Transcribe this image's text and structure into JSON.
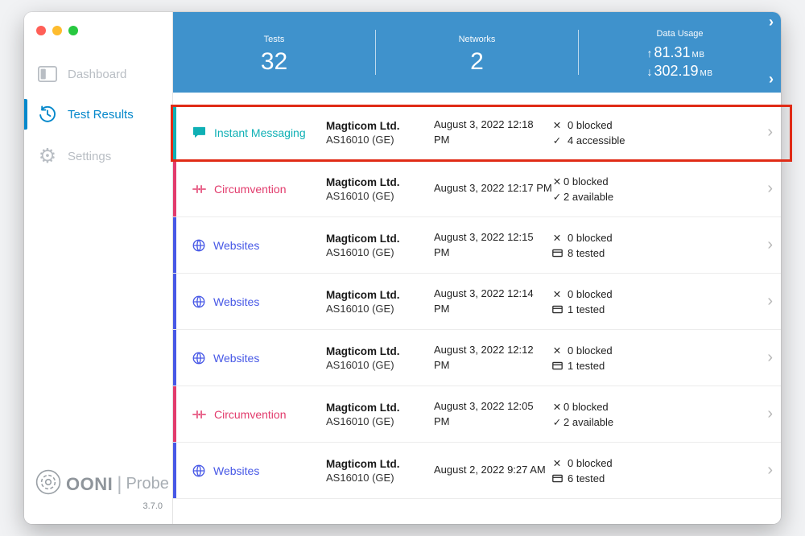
{
  "window": {
    "traffic_lights": {
      "close": "#ff5f57",
      "minimize": "#febc2e",
      "zoom": "#28c840"
    }
  },
  "sidebar": {
    "accent": "#0588cb",
    "items": [
      {
        "label": "Dashboard",
        "icon": "dashboard-icon",
        "active": false
      },
      {
        "label": "Test Results",
        "icon": "history-icon",
        "active": true
      },
      {
        "label": "Settings",
        "icon": "gear-icon",
        "active": false
      }
    ],
    "logo": {
      "brand": "OONI",
      "divider": "|",
      "product": "Probe",
      "version": "3.7.0"
    }
  },
  "header": {
    "accent": "#3f92cc",
    "chevron": "›",
    "stats": [
      {
        "label": "Tests",
        "value": "32"
      },
      {
        "label": "Networks",
        "value": "2"
      }
    ],
    "data_usage": {
      "label": "Data Usage",
      "upload_arrow": "↑",
      "upload_value": "81.31",
      "upload_unit": "MB",
      "download_arrow": "↓",
      "download_value": "302.19",
      "download_unit": "MB"
    }
  },
  "results": {
    "chevron": "›",
    "rows": [
      {
        "test": "Instant Messaging",
        "icon": "chat-icon",
        "color": "#0fb0b5",
        "network_name": "Magticom Ltd.",
        "network_asn": "AS16010 (GE)",
        "date_line1": "August 3, 2022 12:18",
        "date_line2": "PM",
        "stats": [
          {
            "icon": "x",
            "text": "0 blocked",
            "gap": true
          },
          {
            "icon": "check",
            "text": "4 accessible",
            "gap": true
          }
        ],
        "highlighted": true
      },
      {
        "test": "Circumvention",
        "icon": "circumvention-icon",
        "color": "#e23b6c",
        "network_name": "Magticom Ltd.",
        "network_asn": "AS16010 (GE)",
        "date_line1": "August 3, 2022 12:17 PM",
        "date_line2": "",
        "stats": [
          {
            "icon": "x",
            "text": "0 blocked",
            "gap": false
          },
          {
            "icon": "check",
            "text": "2 available",
            "gap": false
          }
        ],
        "highlighted": false
      },
      {
        "test": "Websites",
        "icon": "globe-icon",
        "color": "#4758e6",
        "network_name": "Magticom Ltd.",
        "network_asn": "AS16010 (GE)",
        "date_line1": "August 3, 2022 12:15",
        "date_line2": "PM",
        "stats": [
          {
            "icon": "x",
            "text": "0 blocked",
            "gap": true
          },
          {
            "icon": "card",
            "text": "8 tested",
            "gap": true
          }
        ],
        "highlighted": false
      },
      {
        "test": "Websites",
        "icon": "globe-icon",
        "color": "#4758e6",
        "network_name": "Magticom Ltd.",
        "network_asn": "AS16010 (GE)",
        "date_line1": "August 3, 2022 12:14",
        "date_line2": "PM",
        "stats": [
          {
            "icon": "x",
            "text": "0 blocked",
            "gap": true
          },
          {
            "icon": "card",
            "text": "1 tested",
            "gap": true
          }
        ],
        "highlighted": false
      },
      {
        "test": "Websites",
        "icon": "globe-icon",
        "color": "#4758e6",
        "network_name": "Magticom Ltd.",
        "network_asn": "AS16010 (GE)",
        "date_line1": "August 3, 2022 12:12",
        "date_line2": "PM",
        "stats": [
          {
            "icon": "x",
            "text": "0 blocked",
            "gap": true
          },
          {
            "icon": "card",
            "text": "1 tested",
            "gap": true
          }
        ],
        "highlighted": false
      },
      {
        "test": "Circumvention",
        "icon": "circumvention-icon",
        "color": "#e23b6c",
        "network_name": "Magticom Ltd.",
        "network_asn": "AS16010 (GE)",
        "date_line1": "August 3, 2022 12:05",
        "date_line2": "PM",
        "stats": [
          {
            "icon": "x",
            "text": "0 blocked",
            "gap": false
          },
          {
            "icon": "check",
            "text": "2 available",
            "gap": false
          }
        ],
        "highlighted": false
      },
      {
        "test": "Websites",
        "icon": "globe-icon",
        "color": "#4758e6",
        "network_name": "Magticom Ltd.",
        "network_asn": "AS16010 (GE)",
        "date_line1": "August 2, 2022 9:27 AM",
        "date_line2": "",
        "stats": [
          {
            "icon": "x",
            "text": "0 blocked",
            "gap": true
          },
          {
            "icon": "card",
            "text": "6 tested",
            "gap": true
          }
        ],
        "highlighted": false
      }
    ]
  },
  "annotation": {
    "color": "#e02b16"
  }
}
